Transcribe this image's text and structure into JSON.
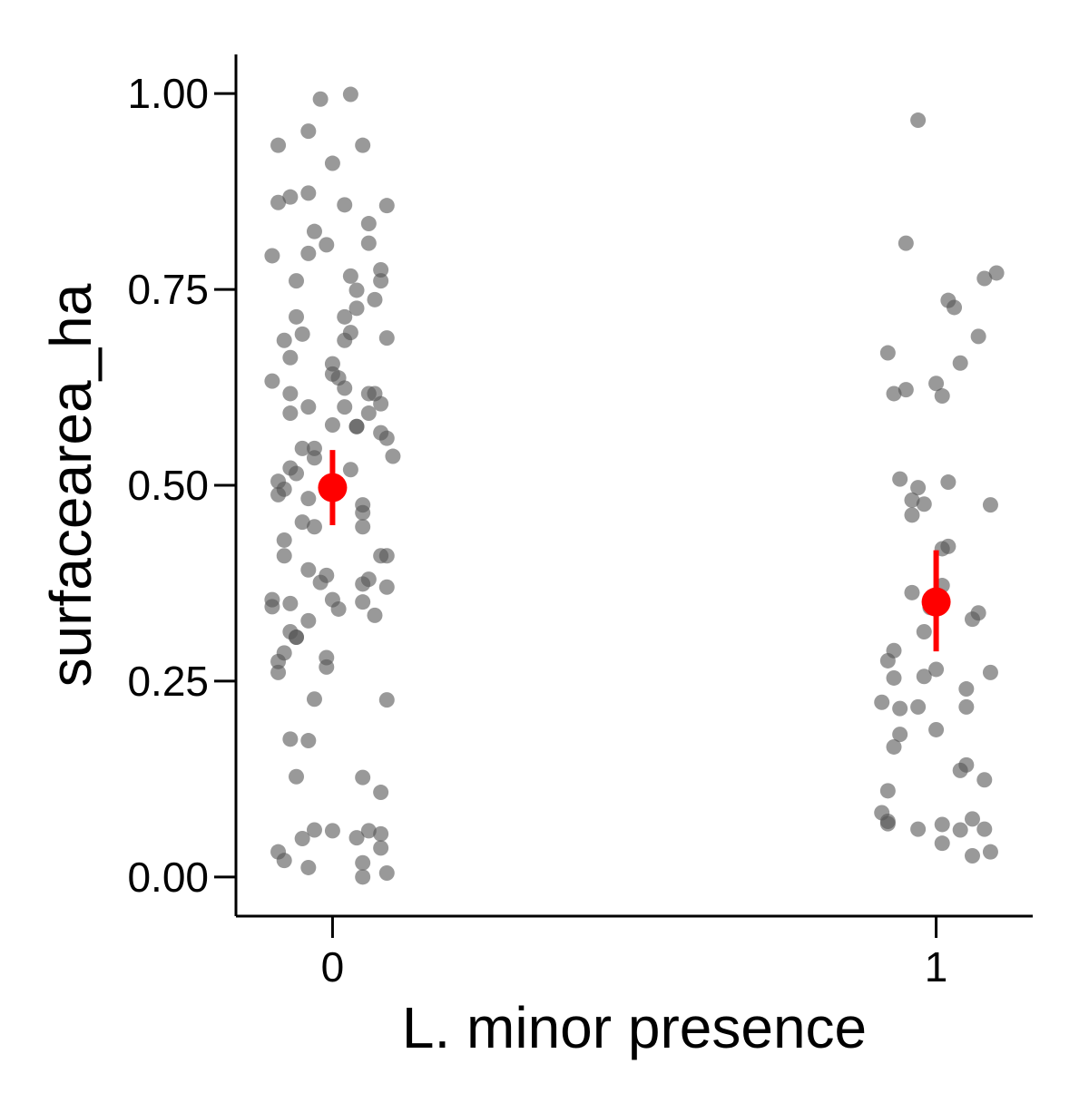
{
  "chart_data": {
    "type": "scatter",
    "title": "",
    "xlabel": "L. minor presence",
    "ylabel": "surfacearea_ha",
    "x_categories": [
      "0",
      "1"
    ],
    "xlim": [
      -0.16,
      1.16
    ],
    "ylim": [
      -0.05,
      1.05
    ],
    "yticks": [
      0.0,
      0.25,
      0.5,
      0.75,
      1.0
    ],
    "ytick_labels": [
      "0.00",
      "0.25",
      "0.50",
      "0.75",
      "1.00"
    ],
    "grid": false,
    "legend": "none",
    "colors": {
      "points": "#555555",
      "summary": "#ff0000",
      "axis": "#000000"
    },
    "series": [
      {
        "group": "0",
        "points": [
          {
            "x": -0.09,
            "y": 0.934
          },
          {
            "x": -0.02,
            "y": 0.993
          },
          {
            "x": 0.03,
            "y": 0.999
          },
          {
            "x": -0.04,
            "y": 0.952
          },
          {
            "x": 0.0,
            "y": 0.911
          },
          {
            "x": 0.05,
            "y": 0.934
          },
          {
            "x": -0.09,
            "y": 0.861
          },
          {
            "x": -0.07,
            "y": 0.868
          },
          {
            "x": -0.04,
            "y": 0.873
          },
          {
            "x": 0.02,
            "y": 0.858
          },
          {
            "x": 0.09,
            "y": 0.857
          },
          {
            "x": -0.03,
            "y": 0.824
          },
          {
            "x": 0.06,
            "y": 0.834
          },
          {
            "x": -0.01,
            "y": 0.807
          },
          {
            "x": 0.06,
            "y": 0.809
          },
          {
            "x": -0.04,
            "y": 0.796
          },
          {
            "x": -0.1,
            "y": 0.793
          },
          {
            "x": -0.06,
            "y": 0.761
          },
          {
            "x": 0.03,
            "y": 0.767
          },
          {
            "x": 0.08,
            "y": 0.775
          },
          {
            "x": 0.08,
            "y": 0.761
          },
          {
            "x": 0.04,
            "y": 0.749
          },
          {
            "x": 0.07,
            "y": 0.737
          },
          {
            "x": 0.04,
            "y": 0.726
          },
          {
            "x": -0.06,
            "y": 0.715
          },
          {
            "x": 0.02,
            "y": 0.715
          },
          {
            "x": 0.03,
            "y": 0.695
          },
          {
            "x": -0.05,
            "y": 0.693
          },
          {
            "x": -0.08,
            "y": 0.685
          },
          {
            "x": 0.02,
            "y": 0.685
          },
          {
            "x": 0.09,
            "y": 0.688
          },
          {
            "x": -0.07,
            "y": 0.663
          },
          {
            "x": 0.0,
            "y": 0.655
          },
          {
            "x": 0.0,
            "y": 0.642
          },
          {
            "x": -0.1,
            "y": 0.633
          },
          {
            "x": 0.01,
            "y": 0.637
          },
          {
            "x": -0.07,
            "y": 0.617
          },
          {
            "x": 0.02,
            "y": 0.624
          },
          {
            "x": 0.06,
            "y": 0.617
          },
          {
            "x": 0.07,
            "y": 0.617
          },
          {
            "x": -0.04,
            "y": 0.6
          },
          {
            "x": 0.02,
            "y": 0.6
          },
          {
            "x": 0.08,
            "y": 0.604
          },
          {
            "x": -0.07,
            "y": 0.592
          },
          {
            "x": 0.06,
            "y": 0.592
          },
          {
            "x": 0.0,
            "y": 0.577
          },
          {
            "x": 0.04,
            "y": 0.575
          },
          {
            "x": 0.04,
            "y": 0.575
          },
          {
            "x": 0.08,
            "y": 0.567
          },
          {
            "x": 0.09,
            "y": 0.56
          },
          {
            "x": -0.05,
            "y": 0.547
          },
          {
            "x": -0.03,
            "y": 0.547
          },
          {
            "x": 0.1,
            "y": 0.537
          },
          {
            "x": -0.03,
            "y": 0.535
          },
          {
            "x": -0.07,
            "y": 0.522
          },
          {
            "x": 0.03,
            "y": 0.52
          },
          {
            "x": -0.06,
            "y": 0.515
          },
          {
            "x": -0.09,
            "y": 0.505
          },
          {
            "x": -0.08,
            "y": 0.495
          },
          {
            "x": -0.09,
            "y": 0.488
          },
          {
            "x": -0.04,
            "y": 0.483
          },
          {
            "x": 0.05,
            "y": 0.475
          },
          {
            "x": -0.05,
            "y": 0.453
          },
          {
            "x": 0.05,
            "y": 0.465
          },
          {
            "x": -0.03,
            "y": 0.447
          },
          {
            "x": 0.05,
            "y": 0.447
          },
          {
            "x": -0.08,
            "y": 0.43
          },
          {
            "x": -0.08,
            "y": 0.41
          },
          {
            "x": 0.08,
            "y": 0.41
          },
          {
            "x": 0.09,
            "y": 0.41
          },
          {
            "x": -0.04,
            "y": 0.392
          },
          {
            "x": -0.01,
            "y": 0.385
          },
          {
            "x": 0.06,
            "y": 0.38
          },
          {
            "x": -0.02,
            "y": 0.376
          },
          {
            "x": 0.05,
            "y": 0.374
          },
          {
            "x": 0.09,
            "y": 0.37
          },
          {
            "x": -0.1,
            "y": 0.354
          },
          {
            "x": 0.0,
            "y": 0.354
          },
          {
            "x": -0.07,
            "y": 0.349
          },
          {
            "x": 0.05,
            "y": 0.351
          },
          {
            "x": -0.1,
            "y": 0.345
          },
          {
            "x": 0.01,
            "y": 0.342
          },
          {
            "x": 0.07,
            "y": 0.334
          },
          {
            "x": -0.04,
            "y": 0.327
          },
          {
            "x": -0.07,
            "y": 0.313
          },
          {
            "x": -0.06,
            "y": 0.306
          },
          {
            "x": -0.06,
            "y": 0.306
          },
          {
            "x": -0.08,
            "y": 0.286
          },
          {
            "x": -0.01,
            "y": 0.28
          },
          {
            "x": -0.09,
            "y": 0.275
          },
          {
            "x": -0.01,
            "y": 0.268
          },
          {
            "x": -0.09,
            "y": 0.261
          },
          {
            "x": -0.03,
            "y": 0.227
          },
          {
            "x": 0.09,
            "y": 0.226
          },
          {
            "x": -0.07,
            "y": 0.176
          },
          {
            "x": -0.04,
            "y": 0.174
          },
          {
            "x": -0.06,
            "y": 0.128
          },
          {
            "x": 0.05,
            "y": 0.127
          },
          {
            "x": 0.08,
            "y": 0.108
          },
          {
            "x": -0.03,
            "y": 0.06
          },
          {
            "x": 0.0,
            "y": 0.059
          },
          {
            "x": 0.06,
            "y": 0.059
          },
          {
            "x": 0.08,
            "y": 0.055
          },
          {
            "x": -0.05,
            "y": 0.049
          },
          {
            "x": 0.04,
            "y": 0.05
          },
          {
            "x": -0.09,
            "y": 0.032
          },
          {
            "x": 0.08,
            "y": 0.037
          },
          {
            "x": -0.08,
            "y": 0.021
          },
          {
            "x": 0.05,
            "y": 0.018
          },
          {
            "x": -0.04,
            "y": 0.012
          },
          {
            "x": 0.09,
            "y": 0.005
          },
          {
            "x": 0.05,
            "y": 0.0
          }
        ],
        "summary": {
          "mean": 0.497,
          "lower": 0.449,
          "upper": 0.545
        }
      },
      {
        "group": "1",
        "points": [
          {
            "x": 0.97,
            "y": 0.966
          },
          {
            "x": 0.95,
            "y": 0.809
          },
          {
            "x": 1.1,
            "y": 0.771
          },
          {
            "x": 1.08,
            "y": 0.764
          },
          {
            "x": 1.02,
            "y": 0.736
          },
          {
            "x": 1.03,
            "y": 0.727
          },
          {
            "x": 1.07,
            "y": 0.69
          },
          {
            "x": 0.92,
            "y": 0.669
          },
          {
            "x": 1.04,
            "y": 0.656
          },
          {
            "x": 1.0,
            "y": 0.63
          },
          {
            "x": 0.95,
            "y": 0.622
          },
          {
            "x": 0.93,
            "y": 0.617
          },
          {
            "x": 1.01,
            "y": 0.614
          },
          {
            "x": 0.94,
            "y": 0.508
          },
          {
            "x": 1.02,
            "y": 0.504
          },
          {
            "x": 0.97,
            "y": 0.497
          },
          {
            "x": 0.96,
            "y": 0.481
          },
          {
            "x": 0.98,
            "y": 0.476
          },
          {
            "x": 1.09,
            "y": 0.475
          },
          {
            "x": 0.96,
            "y": 0.462
          },
          {
            "x": 1.02,
            "y": 0.422
          },
          {
            "x": 1.01,
            "y": 0.419
          },
          {
            "x": 1.01,
            "y": 0.372
          },
          {
            "x": 0.96,
            "y": 0.363
          },
          {
            "x": 0.99,
            "y": 0.344
          },
          {
            "x": 1.07,
            "y": 0.337
          },
          {
            "x": 1.06,
            "y": 0.329
          },
          {
            "x": 0.98,
            "y": 0.313
          },
          {
            "x": 0.93,
            "y": 0.289
          },
          {
            "x": 0.92,
            "y": 0.276
          },
          {
            "x": 1.0,
            "y": 0.265
          },
          {
            "x": 1.09,
            "y": 0.261
          },
          {
            "x": 0.98,
            "y": 0.256
          },
          {
            "x": 0.93,
            "y": 0.254
          },
          {
            "x": 1.05,
            "y": 0.24
          },
          {
            "x": 0.91,
            "y": 0.223
          },
          {
            "x": 0.94,
            "y": 0.215
          },
          {
            "x": 0.97,
            "y": 0.217
          },
          {
            "x": 1.05,
            "y": 0.217
          },
          {
            "x": 1.0,
            "y": 0.188
          },
          {
            "x": 0.94,
            "y": 0.182
          },
          {
            "x": 0.93,
            "y": 0.166
          },
          {
            "x": 1.05,
            "y": 0.143
          },
          {
            "x": 1.04,
            "y": 0.136
          },
          {
            "x": 1.08,
            "y": 0.124
          },
          {
            "x": 0.92,
            "y": 0.11
          },
          {
            "x": 0.91,
            "y": 0.082
          },
          {
            "x": 0.92,
            "y": 0.071
          },
          {
            "x": 0.92,
            "y": 0.068
          },
          {
            "x": 1.06,
            "y": 0.074
          },
          {
            "x": 1.01,
            "y": 0.067
          },
          {
            "x": 0.97,
            "y": 0.061
          },
          {
            "x": 1.04,
            "y": 0.06
          },
          {
            "x": 1.08,
            "y": 0.061
          },
          {
            "x": 1.01,
            "y": 0.043
          },
          {
            "x": 1.06,
            "y": 0.027
          },
          {
            "x": 1.09,
            "y": 0.032
          }
        ],
        "summary": {
          "mean": 0.351,
          "lower": 0.288,
          "upper": 0.417
        }
      }
    ]
  }
}
